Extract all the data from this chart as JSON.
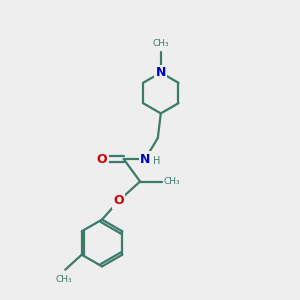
{
  "bg_color": "#eeeeee",
  "bond_color": "#3a7a6a",
  "N_color": "#0000cc",
  "O_color": "#cc0000",
  "line_width": 1.6,
  "fig_size": [
    3.0,
    3.0
  ],
  "dpi": 100,
  "xlim": [
    0,
    10
  ],
  "ylim": [
    0,
    10
  ]
}
